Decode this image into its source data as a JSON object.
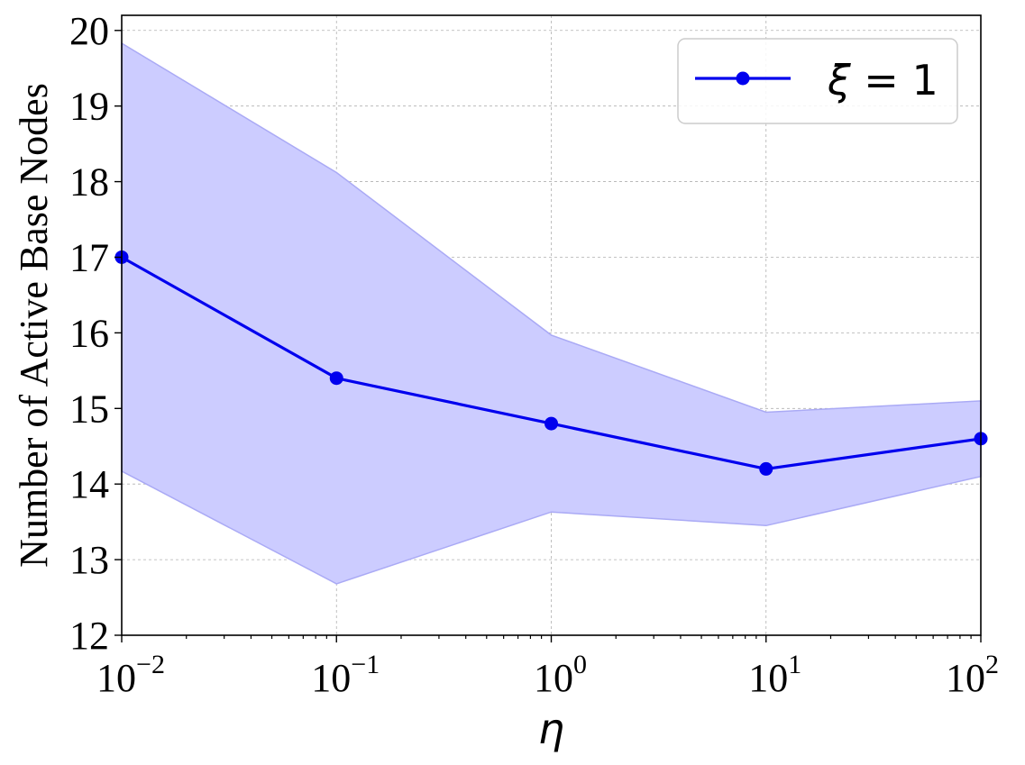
{
  "chart_data": {
    "type": "line",
    "xlabel": "η",
    "ylabel": "Number of Active Base Nodes",
    "x_scale": "log",
    "xlim": [
      0.01,
      100
    ],
    "ylim": [
      12,
      20.2
    ],
    "grid": true,
    "legend_position": "top-right",
    "x_ticks": [
      {
        "value": 0.01,
        "base": "10",
        "exp": "−2"
      },
      {
        "value": 0.1,
        "base": "10",
        "exp": "−1"
      },
      {
        "value": 1,
        "base": "10",
        "exp": "0"
      },
      {
        "value": 10,
        "base": "10",
        "exp": "1"
      },
      {
        "value": 100,
        "base": "10",
        "exp": "2"
      }
    ],
    "y_ticks": [
      "12",
      "13",
      "14",
      "15",
      "16",
      "17",
      "18",
      "19",
      "20"
    ],
    "series": [
      {
        "name_symbol": "ξ",
        "name_rest": " = 1",
        "color": "#0000ee",
        "band_color": "#ccccff",
        "band_edge_color": "#aaaaf5",
        "x": [
          0.01,
          0.1,
          1,
          10,
          100
        ],
        "y": [
          17.0,
          15.4,
          14.8,
          14.2,
          14.6
        ],
        "upper": [
          19.83,
          18.12,
          15.97,
          14.95,
          15.1
        ],
        "lower": [
          14.17,
          12.68,
          13.63,
          13.45,
          14.1
        ]
      }
    ]
  }
}
